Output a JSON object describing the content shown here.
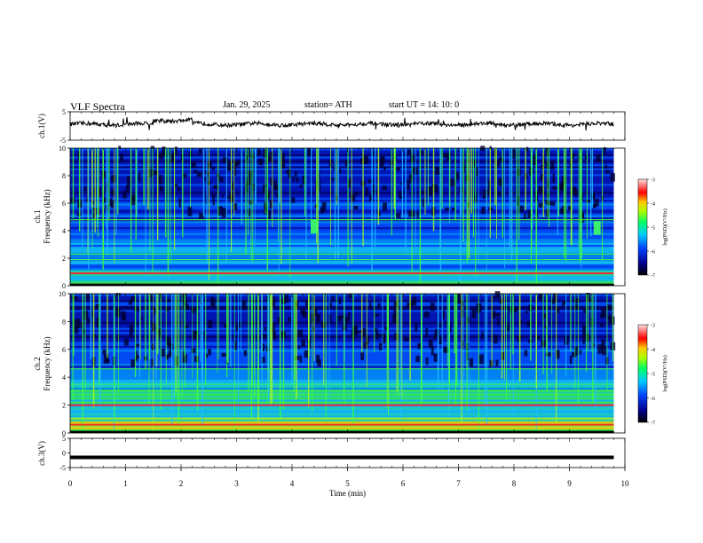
{
  "header": {
    "title": "VLF  Spectra",
    "date": "Jan. 29, 2025",
    "station": "station= ATH",
    "start": "start  UT  =    14: 10: 0"
  },
  "chart_data": [
    {
      "type": "line",
      "panel": "ch1-waveform",
      "ylabel": "ch.1(V)",
      "ylim": [
        -5,
        5
      ],
      "yticks": [
        "5",
        "-5"
      ],
      "xlim": [
        0,
        10
      ],
      "approx_level": 0.6,
      "color": "#000000"
    },
    {
      "type": "heatmap",
      "panel": "ch1-spectrogram",
      "ylabel_line1": "ch.1",
      "ylabel_line2": "Frequency  (kHz)",
      "ylim": [
        0,
        10
      ],
      "yticks": [
        "0",
        "2",
        "4",
        "6",
        "8",
        "10"
      ],
      "xlim": [
        0,
        10
      ],
      "data_end_min": 9.8,
      "colorbar": {
        "label": "log(PSD)(V²/Hz)",
        "range": [
          -7,
          -3
        ],
        "ticks": [
          "-3",
          "-4",
          "-5",
          "-6",
          "-7"
        ]
      },
      "features": [
        {
          "desc": "continuous narrowband line",
          "freq_khz": 2.3
        },
        {
          "desc": "continuous narrowband line",
          "freq_khz": 1.9
        },
        {
          "desc": "strong low-frequency band",
          "freq_khz": 0.9
        },
        {
          "desc": "band",
          "freq_khz": 4.8
        },
        {
          "desc": "enhanced blob",
          "time_min": 4.4,
          "freq_khz": 4.3
        },
        {
          "desc": "enhanced blob",
          "time_min": 9.5,
          "freq_khz": 4.2
        }
      ]
    },
    {
      "type": "heatmap",
      "panel": "ch2-spectrogram",
      "ylabel_line1": "ch.2",
      "ylabel_line2": "Frequency  (kHz)",
      "ylim": [
        0,
        10
      ],
      "yticks": [
        "0",
        "2",
        "4",
        "6",
        "8",
        "10"
      ],
      "xlim": [
        0,
        10
      ],
      "data_end_min": 9.8,
      "colorbar": {
        "label": "log(PSD)(V²/Hz)",
        "range": [
          -7,
          -3
        ],
        "ticks": [
          "-3",
          "-4",
          "-5",
          "-6",
          "-7"
        ]
      },
      "features": [
        {
          "desc": "strong narrowband line",
          "freq_khz": 2.0
        },
        {
          "desc": "band",
          "freq_khz": 3.5
        },
        {
          "desc": "band",
          "freq_khz": 4.6
        },
        {
          "desc": "strong low-frequency band",
          "freq_khz": 0.6
        }
      ]
    },
    {
      "type": "line",
      "panel": "ch3-waveform",
      "ylabel": "ch.3(V)",
      "ylim": [
        -5,
        5
      ],
      "yticks": [
        "5",
        "0",
        "-5"
      ],
      "xlim": [
        0,
        10
      ],
      "approx_level": -1.5,
      "color": "#000000"
    }
  ],
  "xaxis": {
    "label": "Time  (min)",
    "ticks": [
      "0",
      "1",
      "2",
      "3",
      "4",
      "5",
      "6",
      "7",
      "8",
      "9",
      "10"
    ]
  },
  "colors": {
    "background_dark": "#000044",
    "spectrum_low": "#0022cc",
    "spectrum_mid": "#20c0ff",
    "spectrum_high": "#40ff40",
    "spectrum_peak": "#ff0000"
  }
}
